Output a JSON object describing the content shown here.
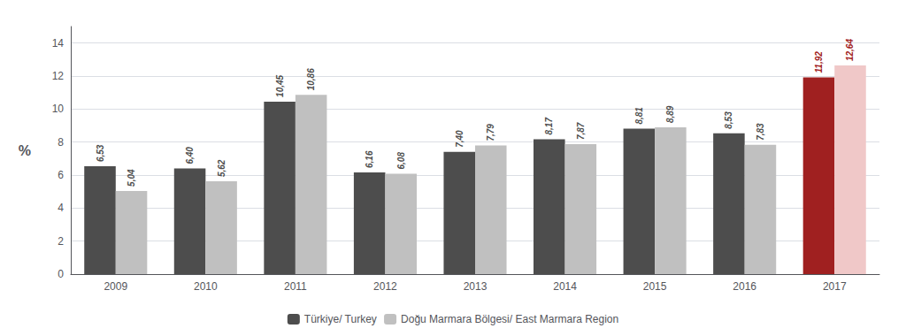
{
  "chart_data": {
    "type": "bar",
    "categories": [
      "2009",
      "2010",
      "2011",
      "2012",
      "2013",
      "2014",
      "2015",
      "2016",
      "2017"
    ],
    "ylabel": "%",
    "series": [
      {
        "name": "Türkiye/ Turkey",
        "colors": [
          "#4d4d4d",
          "#4d4d4d",
          "#4d4d4d",
          "#4d4d4d",
          "#4d4d4d",
          "#4d4d4d",
          "#4d4d4d",
          "#4d4d4d",
          "#a02020"
        ],
        "values": [
          6.53,
          6.4,
          10.45,
          6.16,
          7.4,
          8.17,
          8.81,
          8.53,
          11.92
        ],
        "value_labels": [
          "6,53",
          "6,40",
          "10,45",
          "6,16",
          "7,40",
          "8,17",
          "8,81",
          "8,53",
          "11,92"
        ]
      },
      {
        "name": "Doğu Marmara Bölgesi/ East Marmara Region",
        "colors": [
          "#c0c0c0",
          "#c0c0c0",
          "#c0c0c0",
          "#c0c0c0",
          "#c0c0c0",
          "#c0c0c0",
          "#c0c0c0",
          "#c0c0c0",
          "#f0c8c8"
        ],
        "values": [
          5.04,
          5.62,
          10.86,
          6.08,
          7.79,
          7.87,
          8.89,
          7.83,
          12.64
        ],
        "value_labels": [
          "5,04",
          "5,62",
          "10,86",
          "6,08",
          "7,79",
          "7,87",
          "8,89",
          "7,83",
          "12,64"
        ]
      }
    ],
    "ylim": [
      0,
      15
    ],
    "yticks": [
      0,
      2,
      4,
      6,
      8,
      10,
      12,
      14
    ],
    "grid": true,
    "data_labels": true,
    "legend": "bottom"
  }
}
